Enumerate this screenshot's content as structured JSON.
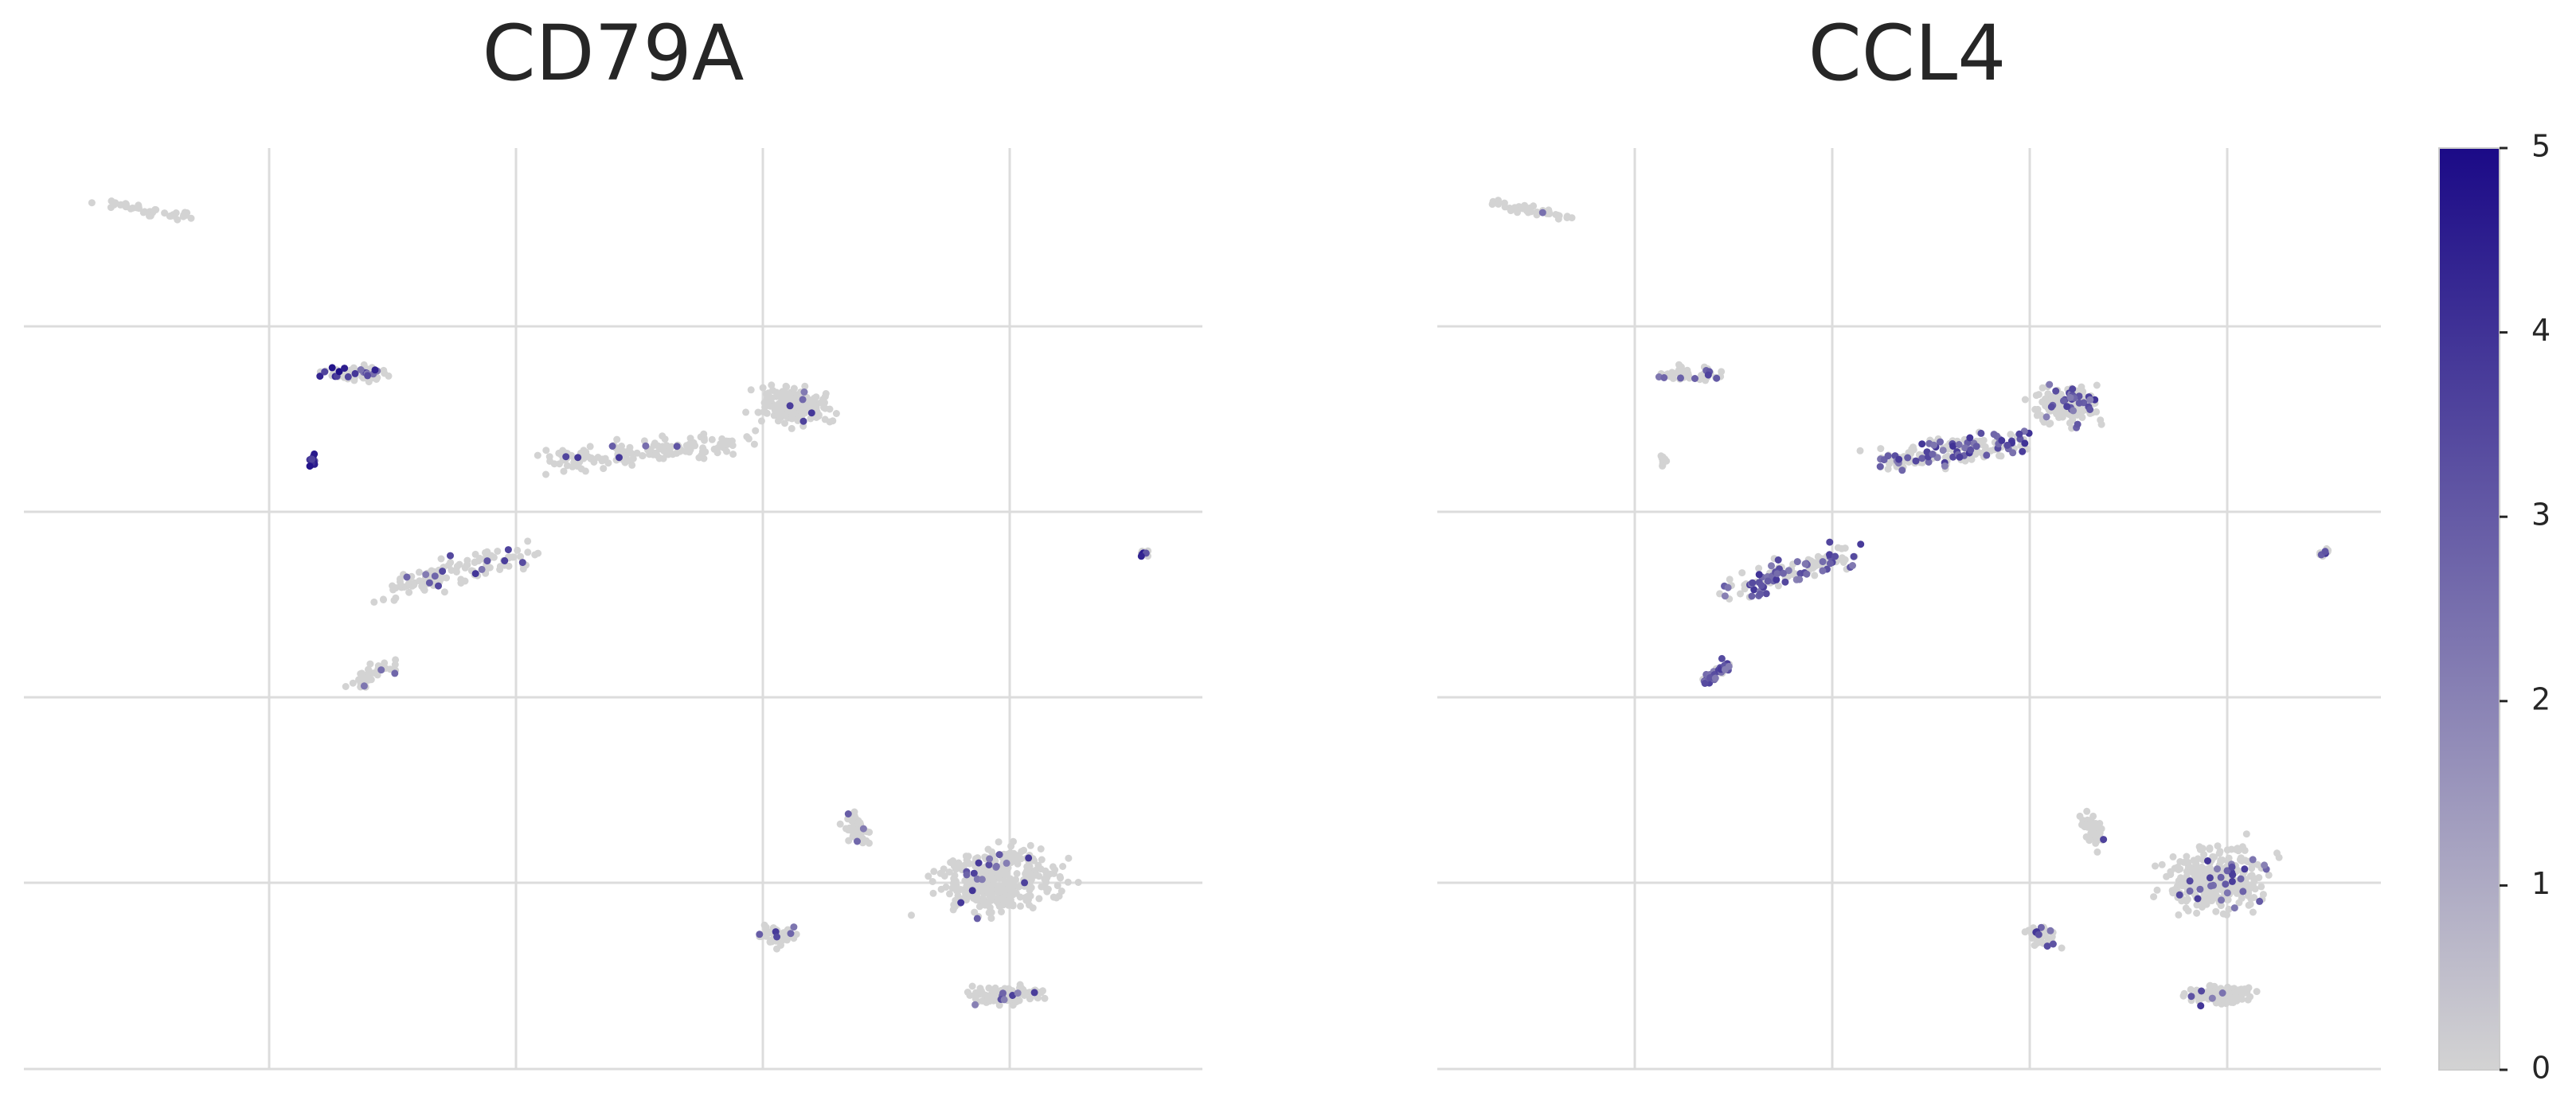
{
  "chart_data": [
    {
      "type": "scatter",
      "title": "CD79A",
      "xlabel": "",
      "ylabel": "",
      "grid": true,
      "clusters": [
        {
          "x": [
            0.07,
            0.14
          ],
          "y": [
            0.94,
            0.925
          ],
          "n": 40,
          "spread": [
            0.02,
            0.006
          ],
          "expr_frac": 0.05,
          "expr_range": [
            2,
            4
          ]
        },
        {
          "x": [
            0.26,
            0.3
          ],
          "y": [
            0.755,
            0.755
          ],
          "n": 60,
          "spread": [
            0.022,
            0.012
          ],
          "expr_frac": 0.4,
          "expr_range": [
            2,
            5
          ]
        },
        {
          "x": [
            0.245,
            0.245
          ],
          "y": [
            0.66,
            0.66
          ],
          "n": 16,
          "spread": [
            0.004,
            0.008
          ],
          "expr_frac": 0.85,
          "expr_range": [
            3,
            5
          ]
        },
        {
          "x": [
            0.45,
            0.6
          ],
          "y": [
            0.66,
            0.68
          ],
          "n": 160,
          "spread": [
            0.04,
            0.02
          ],
          "expr_frac": 0.03,
          "expr_range": [
            2,
            4
          ]
        },
        {
          "x": [
            0.64,
            0.67
          ],
          "y": [
            0.72,
            0.72
          ],
          "n": 170,
          "spread": [
            0.04,
            0.03
          ],
          "expr_frac": 0.03,
          "expr_range": [
            2,
            4
          ]
        },
        {
          "x": [
            0.95,
            0.95
          ],
          "y": [
            0.56,
            0.56
          ],
          "n": 14,
          "spread": [
            0.006,
            0.006
          ],
          "expr_frac": 0.2,
          "expr_range": [
            3,
            5
          ]
        },
        {
          "x": [
            0.31,
            0.42
          ],
          "y": [
            0.52,
            0.56
          ],
          "n": 120,
          "spread": [
            0.03,
            0.02
          ],
          "expr_frac": 0.1,
          "expr_range": [
            2,
            4
          ]
        },
        {
          "x": [
            0.28,
            0.31
          ],
          "y": [
            0.42,
            0.44
          ],
          "n": 40,
          "spread": [
            0.012,
            0.012
          ],
          "expr_frac": 0.1,
          "expr_range": [
            2,
            4
          ]
        },
        {
          "x": [
            0.7,
            0.71
          ],
          "y": [
            0.27,
            0.25
          ],
          "n": 50,
          "spread": [
            0.015,
            0.018
          ],
          "expr_frac": 0.05,
          "expr_range": [
            2,
            4
          ]
        },
        {
          "x": [
            0.63,
            0.65
          ],
          "y": [
            0.15,
            0.14
          ],
          "n": 45,
          "spread": [
            0.018,
            0.015
          ],
          "expr_frac": 0.04,
          "expr_range": [
            2,
            4
          ]
        },
        {
          "x": [
            0.8,
            0.85
          ],
          "y": [
            0.2,
            0.21
          ],
          "n": 330,
          "spread": [
            0.06,
            0.05
          ],
          "expr_frac": 0.04,
          "expr_range": [
            2,
            4
          ]
        },
        {
          "x": [
            0.82,
            0.84
          ],
          "y": [
            0.08,
            0.08
          ],
          "n": 130,
          "spread": [
            0.04,
            0.014
          ],
          "expr_frac": 0.05,
          "expr_range": [
            2,
            4
          ]
        }
      ]
    },
    {
      "type": "scatter",
      "title": "CCL4",
      "xlabel": "",
      "ylabel": "",
      "grid": true,
      "clusters": [
        {
          "x": [
            0.06,
            0.14
          ],
          "y": [
            0.94,
            0.925
          ],
          "n": 40,
          "spread": [
            0.02,
            0.006
          ],
          "expr_frac": 0.1,
          "expr_range": [
            2,
            4
          ]
        },
        {
          "x": [
            0.24,
            0.3
          ],
          "y": [
            0.755,
            0.755
          ],
          "n": 45,
          "spread": [
            0.022,
            0.012
          ],
          "expr_frac": 0.08,
          "expr_range": [
            2,
            4
          ]
        },
        {
          "x": [
            0.24,
            0.24
          ],
          "y": [
            0.66,
            0.66
          ],
          "n": 10,
          "spread": [
            0.004,
            0.008
          ],
          "expr_frac": 0.05,
          "expr_range": [
            2,
            4
          ]
        },
        {
          "x": [
            0.47,
            0.62
          ],
          "y": [
            0.66,
            0.68
          ],
          "n": 160,
          "spread": [
            0.04,
            0.02
          ],
          "expr_frac": 0.45,
          "expr_range": [
            2,
            4
          ]
        },
        {
          "x": [
            0.65,
            0.68
          ],
          "y": [
            0.72,
            0.72
          ],
          "n": 170,
          "spread": [
            0.04,
            0.03
          ],
          "expr_frac": 0.15,
          "expr_range": [
            2,
            4
          ]
        },
        {
          "x": [
            0.94,
            0.94
          ],
          "y": [
            0.56,
            0.56
          ],
          "n": 14,
          "spread": [
            0.006,
            0.006
          ],
          "expr_frac": 0.2,
          "expr_range": [
            2,
            4
          ]
        },
        {
          "x": [
            0.31,
            0.44
          ],
          "y": [
            0.52,
            0.56
          ],
          "n": 120,
          "spread": [
            0.03,
            0.02
          ],
          "expr_frac": 0.45,
          "expr_range": [
            2,
            4
          ]
        },
        {
          "x": [
            0.28,
            0.31
          ],
          "y": [
            0.42,
            0.44
          ],
          "n": 40,
          "spread": [
            0.012,
            0.012
          ],
          "expr_frac": 0.6,
          "expr_range": [
            2,
            4
          ]
        },
        {
          "x": [
            0.69,
            0.7
          ],
          "y": [
            0.27,
            0.25
          ],
          "n": 50,
          "spread": [
            0.015,
            0.018
          ],
          "expr_frac": 0.06,
          "expr_range": [
            2,
            4
          ]
        },
        {
          "x": [
            0.63,
            0.65
          ],
          "y": [
            0.15,
            0.14
          ],
          "n": 45,
          "spread": [
            0.018,
            0.015
          ],
          "expr_frac": 0.08,
          "expr_range": [
            2,
            4
          ]
        },
        {
          "x": [
            0.8,
            0.85
          ],
          "y": [
            0.2,
            0.21
          ],
          "n": 330,
          "spread": [
            0.06,
            0.05
          ],
          "expr_frac": 0.08,
          "expr_range": [
            2,
            4
          ]
        },
        {
          "x": [
            0.82,
            0.84
          ],
          "y": [
            0.08,
            0.08
          ],
          "n": 130,
          "spread": [
            0.04,
            0.014
          ],
          "expr_frac": 0.06,
          "expr_range": [
            2,
            4
          ]
        }
      ]
    }
  ],
  "colorbar": {
    "min": 0,
    "max": 5,
    "ticks": [
      "0",
      "1",
      "2",
      "3",
      "4",
      "5"
    ],
    "colors": {
      "low": "#d3d3d3",
      "high": "#1b0a87"
    }
  }
}
